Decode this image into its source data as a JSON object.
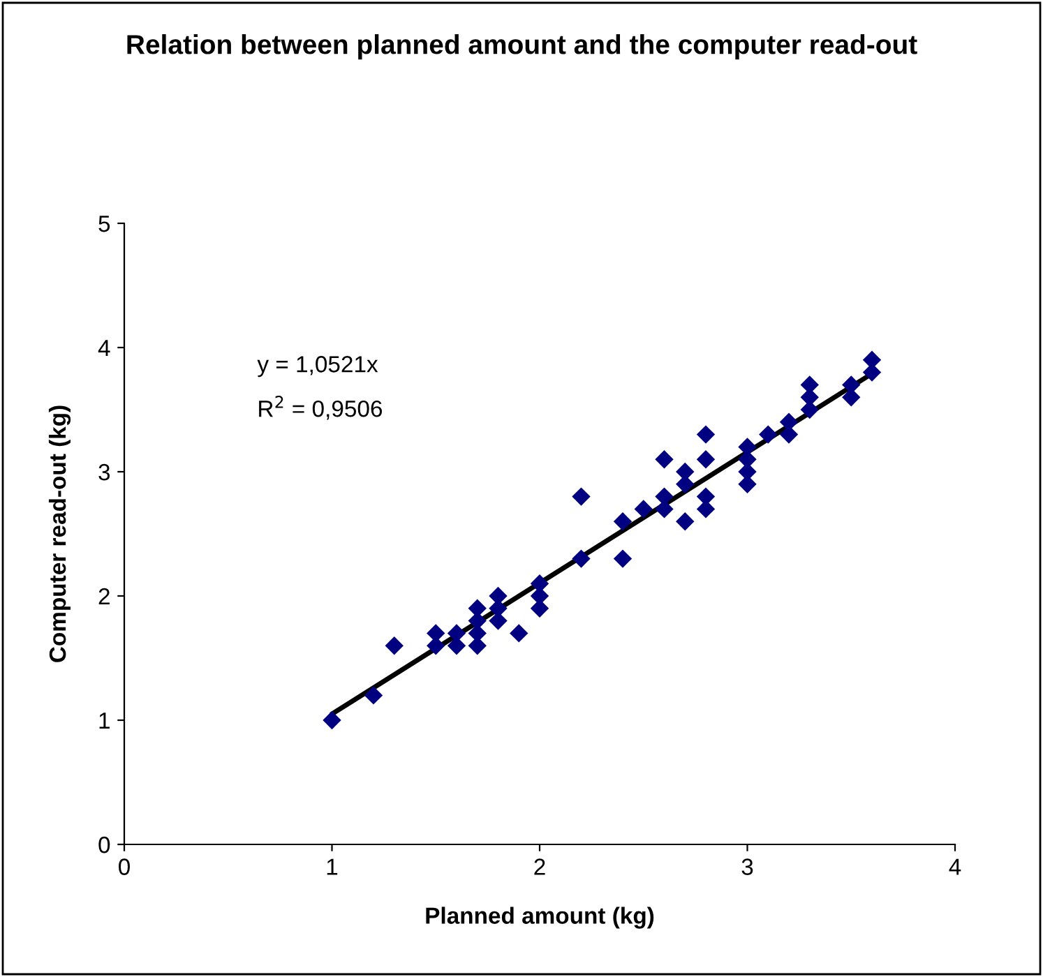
{
  "chart_data": {
    "type": "scatter",
    "title": "Relation between planned amount and the computer read-out",
    "xlabel": "Planned amount (kg)",
    "ylabel": "Computer read-out (kg)",
    "xlim": [
      0,
      4
    ],
    "ylim": [
      0,
      5
    ],
    "xticks": [
      0,
      1,
      2,
      3,
      4
    ],
    "yticks": [
      0,
      1,
      2,
      3,
      4,
      5
    ],
    "grid": false,
    "legend": false,
    "annotations": [
      "y = 1,0521x",
      "R$^{2}$ = 0,9506"
    ],
    "series": [
      {
        "color": "#000080",
        "marker": "diamond",
        "x": [
          1,
          1.2,
          1.3,
          1.5,
          1.5,
          1.6,
          1.6,
          1.7,
          1.7,
          1.7,
          1.7,
          1.8,
          1.8,
          1.8,
          1.9,
          2.0,
          2.0,
          2.0,
          2.2,
          2.2,
          2.4,
          2.4,
          2.5,
          2.6,
          2.6,
          2.6,
          2.7,
          2.7,
          2.7,
          2.8,
          2.8,
          2.8,
          2.8,
          3.0,
          3.0,
          3.0,
          3.0,
          3.1,
          3.2,
          3.2,
          3.3,
          3.3,
          3.3,
          3.5,
          3.5,
          3.6,
          3.6
        ],
        "values": [
          1.0,
          1.2,
          1.6,
          1.6,
          1.7,
          1.6,
          1.7,
          1.6,
          1.7,
          1.8,
          1.9,
          1.8,
          1.9,
          2.0,
          1.7,
          1.9,
          2.0,
          2.1,
          2.3,
          2.8,
          2.3,
          2.6,
          2.7,
          2.7,
          2.8,
          3.1,
          2.6,
          2.9,
          3.0,
          2.7,
          2.8,
          3.1,
          3.3,
          2.9,
          3.0,
          3.1,
          3.2,
          3.3,
          3.3,
          3.4,
          3.5,
          3.6,
          3.7,
          3.6,
          3.7,
          3.8,
          3.9
        ]
      },
      {
        "type": "line",
        "color": "#000000",
        "marker": "none",
        "line_style": "solid",
        "x": [
          1,
          3.6
        ],
        "values": [
          1.05,
          3.79
        ]
      }
    ]
  }
}
